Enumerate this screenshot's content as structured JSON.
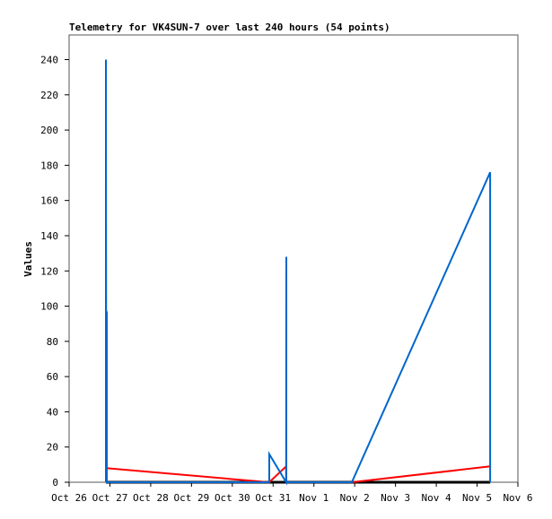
{
  "chart_data": {
    "type": "line",
    "title": "Telemetry for VK4SUN-7 over last 240 hours (54 points)",
    "xlabel": "",
    "ylabel": "Values",
    "xlim": [
      "Oct 26 00:00",
      "Nov 6 00:00"
    ],
    "ylim": [
      0,
      254
    ],
    "x_ticks": [
      "Oct 26",
      "Oct 27",
      "Oct 28",
      "Oct 29",
      "Oct 30",
      "Oct 31",
      "Nov 1",
      "Nov 2",
      "Nov 3",
      "Nov 4",
      "Nov 5",
      "Nov 6"
    ],
    "y_ticks": [
      0,
      20,
      40,
      60,
      80,
      100,
      120,
      140,
      160,
      180,
      200,
      220,
      240
    ],
    "grid": false,
    "legend": "none",
    "series": [
      {
        "color": "#000000",
        "points": [
          [
            "Oct 26 21:40",
            0
          ],
          [
            "Nov 5 07:40",
            0
          ]
        ]
      },
      {
        "color": "#ff0000",
        "points": [
          [
            "Oct 26 22:00",
            8
          ],
          [
            "Oct 30 17:30",
            0.3
          ],
          [
            "Oct 30 21:45",
            0
          ],
          [
            "Oct 31 07:40",
            9
          ],
          [
            "Oct 31 07:47",
            0
          ],
          [
            "Nov 1 22:20",
            0
          ],
          [
            "Nov 5 07:40",
            9
          ]
        ]
      },
      {
        "color": "#0066cc",
        "points": [
          [
            "Oct 26 21:40",
            0
          ],
          [
            "Oct 26 21:40",
            240
          ],
          [
            "Oct 26 21:50",
            0
          ],
          [
            "Oct 26 22:10",
            97
          ],
          [
            "Oct 26 22:10",
            0
          ],
          [
            "Oct 30 21:45",
            0
          ],
          [
            "Oct 30 21:45",
            16
          ],
          [
            "Oct 31 07:40",
            0
          ],
          [
            "Oct 31 07:47",
            128
          ],
          [
            "Oct 31 07:47",
            0
          ],
          [
            "Nov 1 22:20",
            0
          ],
          [
            "Nov 5 07:40",
            176
          ],
          [
            "Nov 5 07:40",
            0
          ]
        ]
      }
    ]
  }
}
